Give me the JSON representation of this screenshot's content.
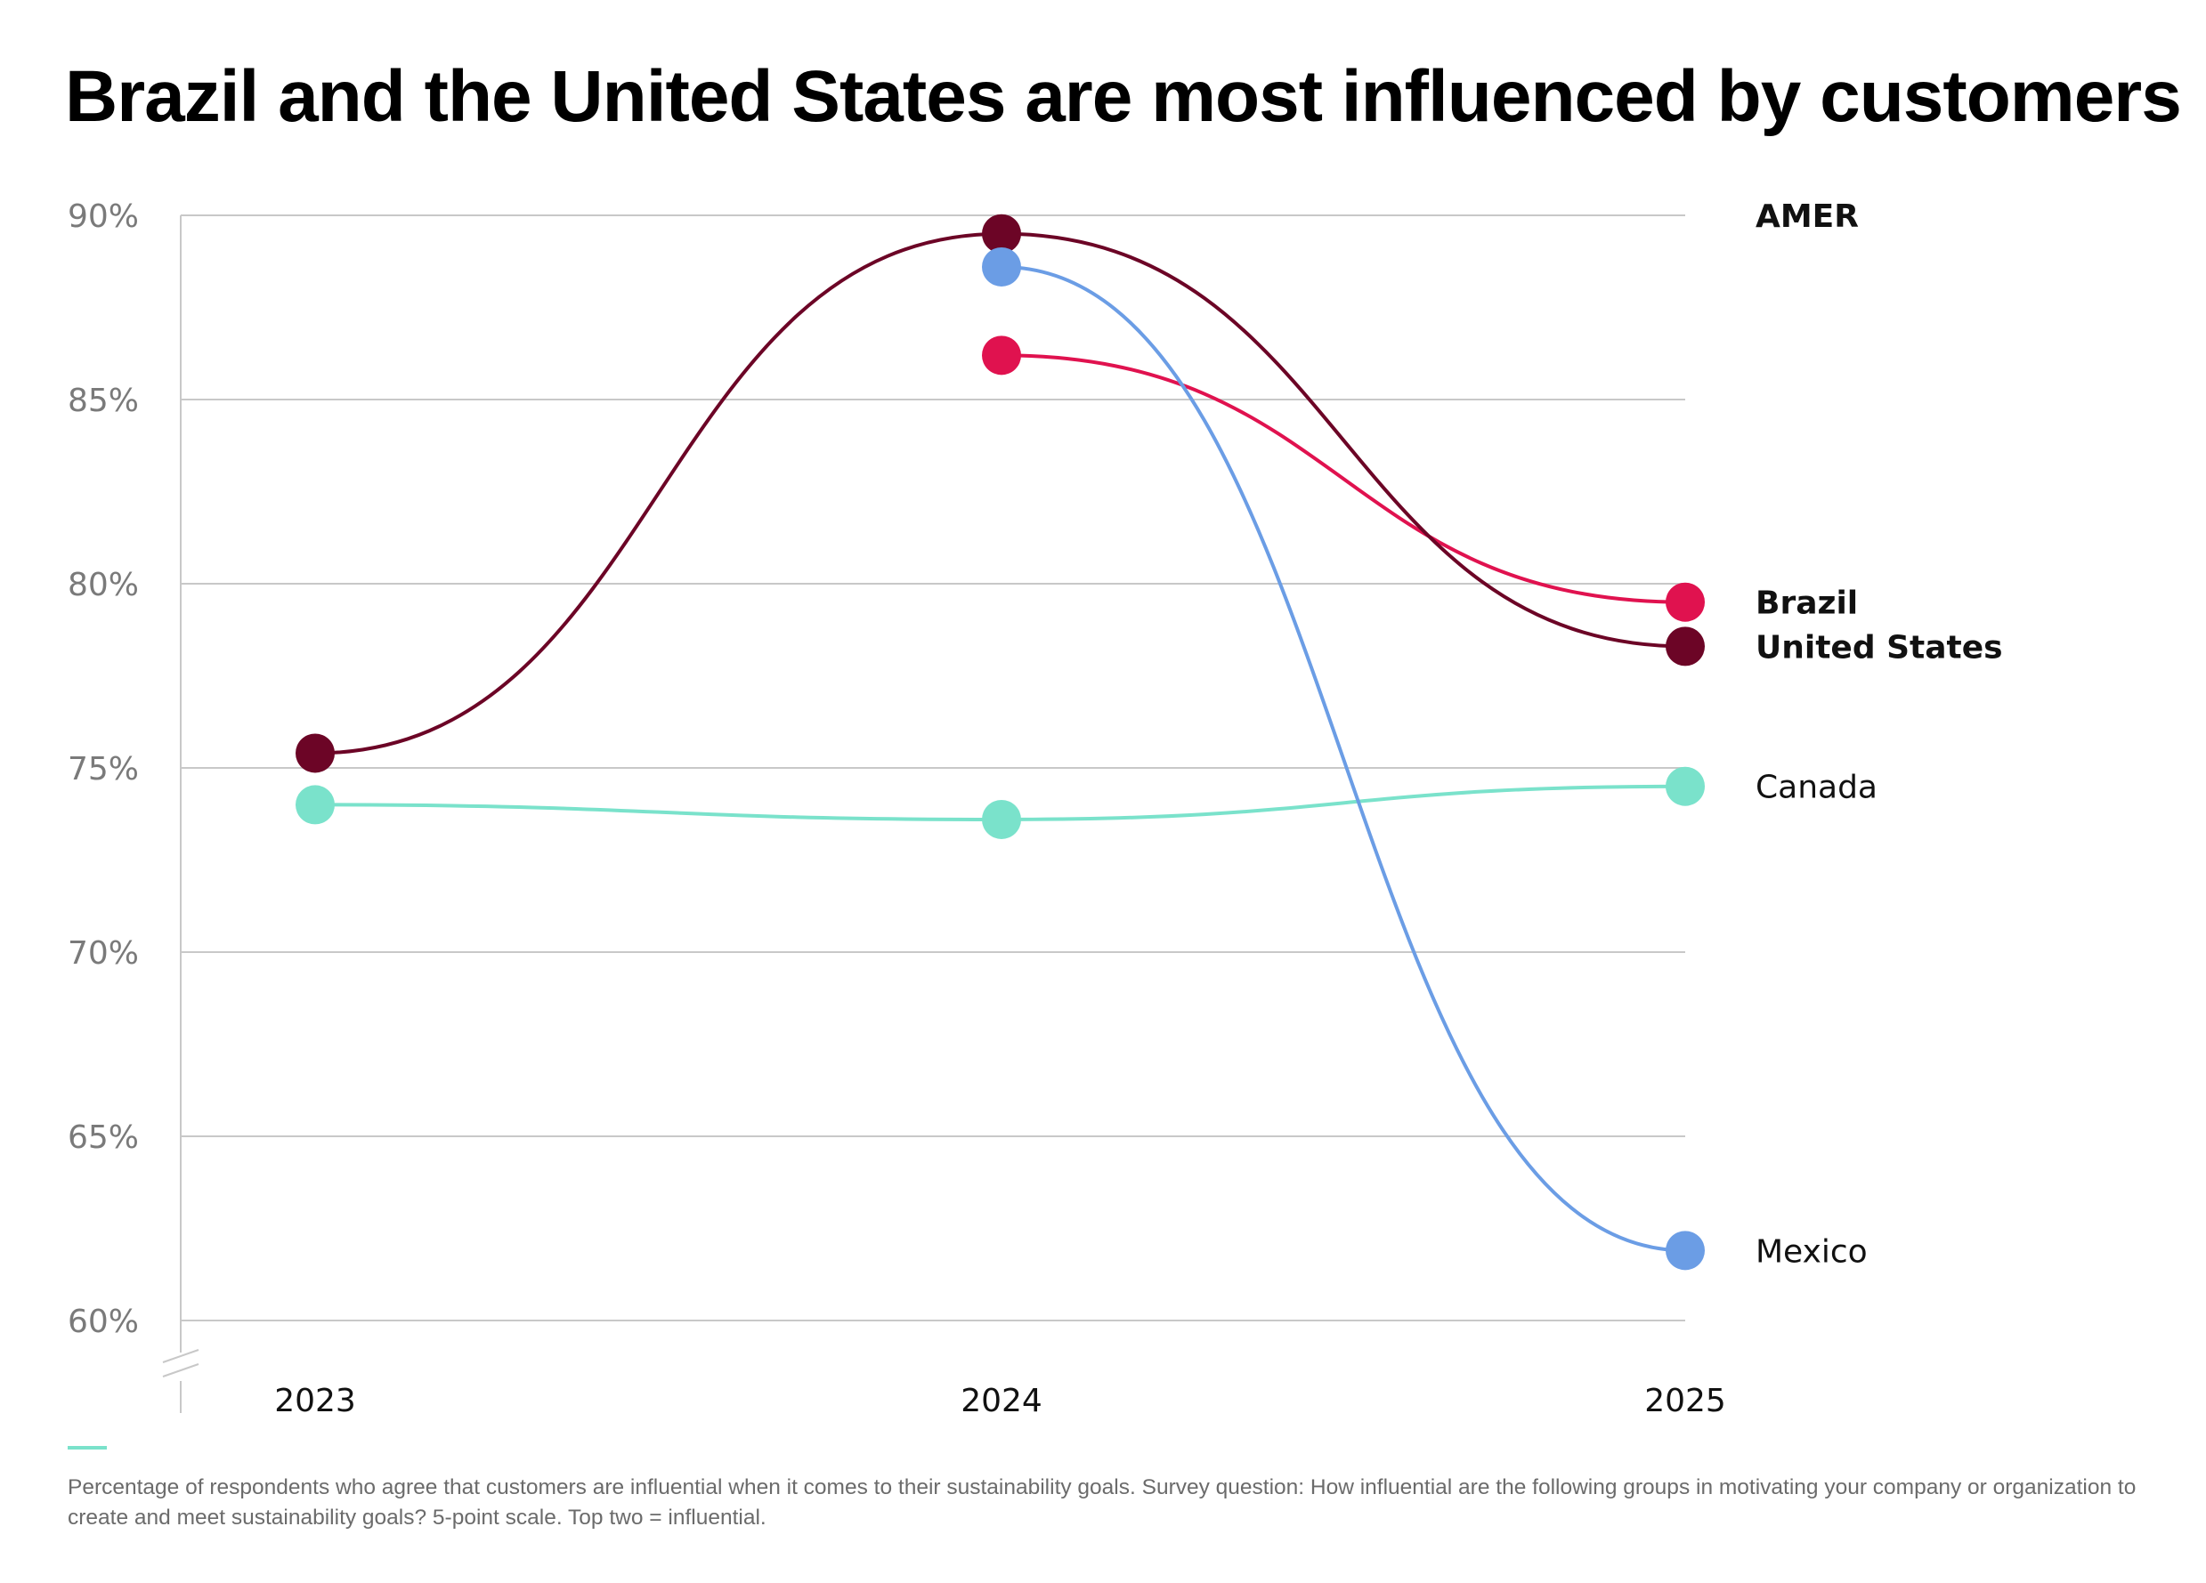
{
  "title": "Brazil and the United States are most influenced by customers",
  "footnote": "Percentage of respondents who agree that customers are influential when it comes to their sustainability goals. Survey question: How influential are the following groups in motivating your company or organization to create and meet sustainability goals? 5-point scale. Top two = influential.",
  "chart_data": {
    "type": "line",
    "title": "Brazil and the United States are most influenced by customers",
    "legend_title": "AMER",
    "legend_position": "right",
    "xlabel": "",
    "ylabel": "",
    "x": [
      "2023",
      "2024",
      "2025"
    ],
    "ylim": [
      60,
      90
    ],
    "y_ticks": [
      {
        "value": 90,
        "label": "90%"
      },
      {
        "value": 85,
        "label": "85%"
      },
      {
        "value": 80,
        "label": "80%"
      },
      {
        "value": 75,
        "label": "75%"
      },
      {
        "value": 70,
        "label": "70%"
      },
      {
        "value": 65,
        "label": "65%"
      },
      {
        "value": 60,
        "label": "60%"
      }
    ],
    "grid": true,
    "axis_break": true,
    "series": [
      {
        "name": "Brazil",
        "color": "#e0124f",
        "bold": true,
        "values": [
          null,
          86.2,
          79.5
        ]
      },
      {
        "name": "United States",
        "color": "#6c0526",
        "bold": true,
        "values": [
          75.4,
          89.5,
          78.3
        ]
      },
      {
        "name": "Canada",
        "color": "#7ae2cb",
        "bold": false,
        "values": [
          74.0,
          73.6,
          74.5
        ]
      },
      {
        "name": "Mexico",
        "color": "#6b9de5",
        "bold": false,
        "values": [
          null,
          88.6,
          61.9
        ]
      }
    ]
  }
}
